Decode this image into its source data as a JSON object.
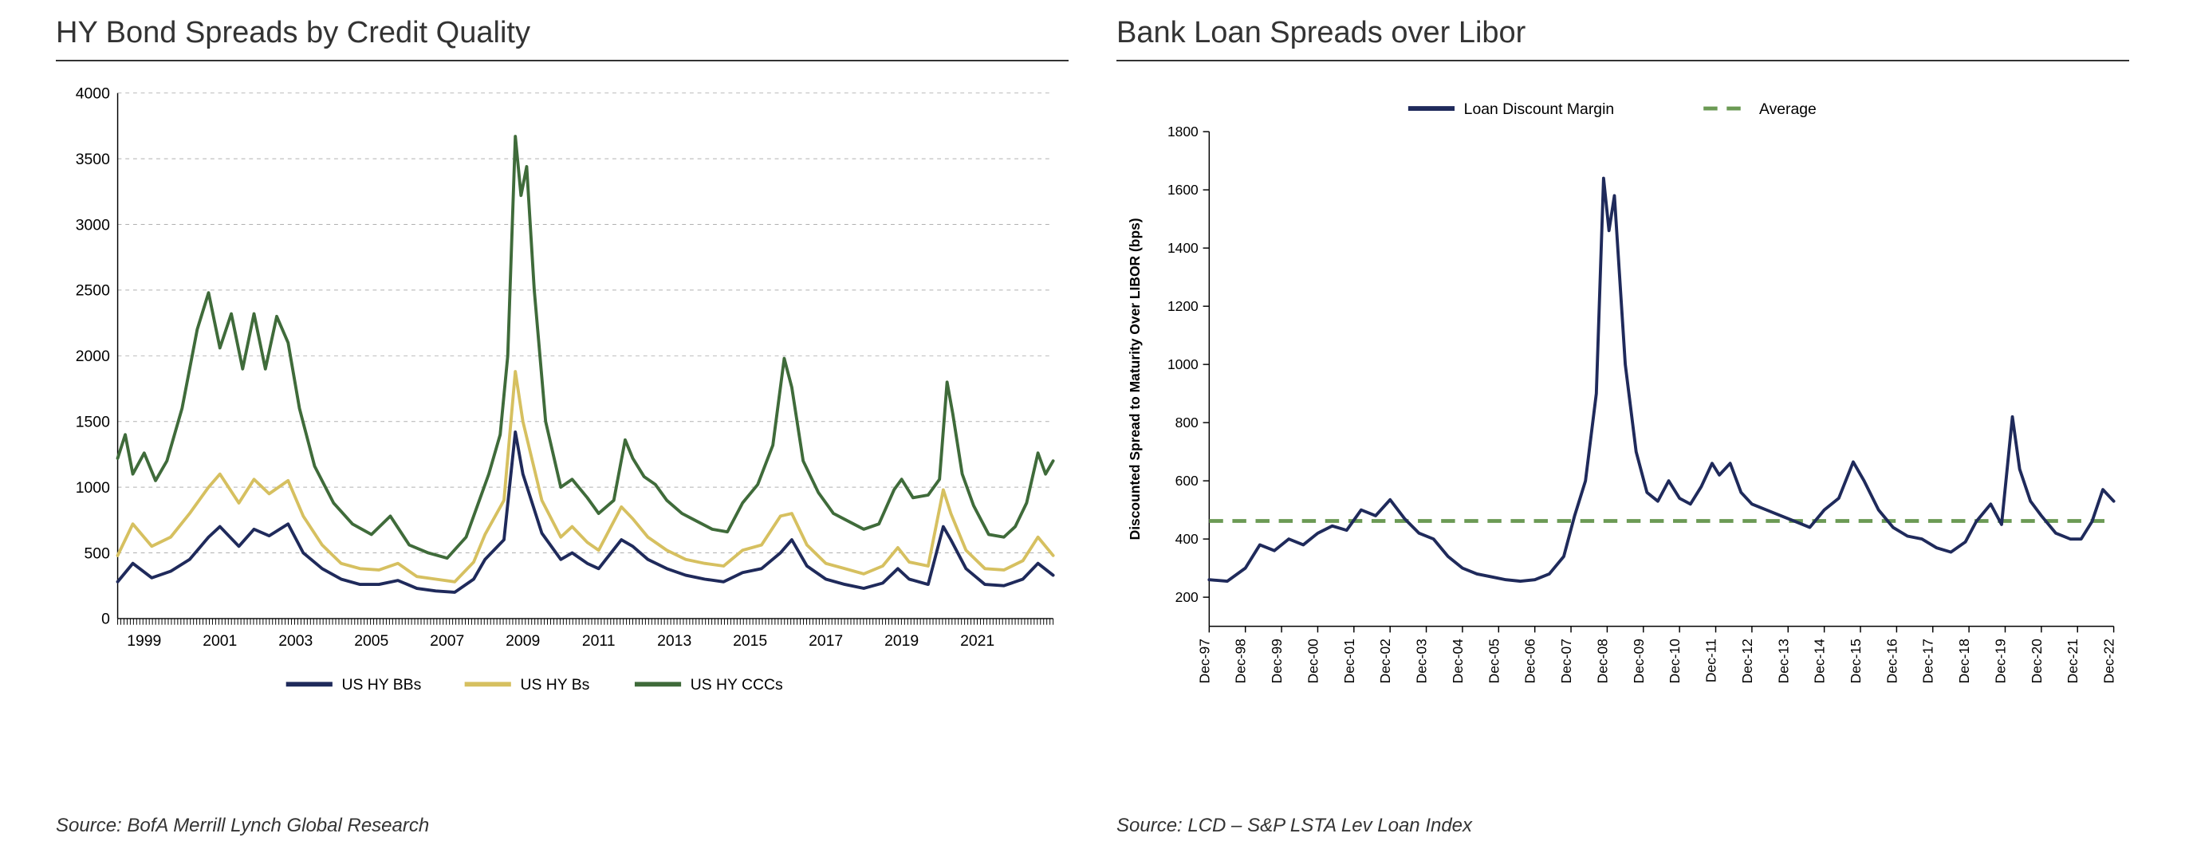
{
  "left_chart": {
    "type": "line",
    "title": "HY Bond Spreads by Credit Quality",
    "title_fontsize": 38,
    "title_color": "#333333",
    "source": "Source: BofA Merrill Lynch Global Research",
    "background_color": "#ffffff",
    "grid_color": "#b0b0b0",
    "axis_color": "#000000",
    "tick_fontsize": 20,
    "x": {
      "min": 1998.3,
      "max": 2023.0,
      "ticks": [
        1999,
        2001,
        2003,
        2005,
        2007,
        2009,
        2011,
        2013,
        2015,
        2017,
        2019,
        2021
      ],
      "tick_labels": [
        "1999",
        "2001",
        "2003",
        "2005",
        "2007",
        "2009",
        "2011",
        "2013",
        "2015",
        "2017",
        "2019",
        "2021"
      ]
    },
    "y": {
      "min": 0,
      "max": 4000,
      "ticks": [
        0,
        500,
        1000,
        1500,
        2000,
        2500,
        3000,
        3500,
        4000
      ]
    },
    "line_width": 4,
    "legend_fontsize": 20,
    "series": [
      {
        "name": "US HY BBs",
        "color": "#1f2a5b",
        "points": [
          [
            1998.3,
            280
          ],
          [
            1998.7,
            420
          ],
          [
            1999.2,
            310
          ],
          [
            1999.7,
            360
          ],
          [
            2000.2,
            450
          ],
          [
            2000.7,
            620
          ],
          [
            2001.0,
            700
          ],
          [
            2001.5,
            550
          ],
          [
            2001.9,
            680
          ],
          [
            2002.3,
            630
          ],
          [
            2002.8,
            720
          ],
          [
            2003.2,
            500
          ],
          [
            2003.7,
            380
          ],
          [
            2004.2,
            300
          ],
          [
            2004.7,
            260
          ],
          [
            2005.2,
            260
          ],
          [
            2005.7,
            290
          ],
          [
            2006.2,
            230
          ],
          [
            2006.7,
            210
          ],
          [
            2007.2,
            200
          ],
          [
            2007.7,
            300
          ],
          [
            2008.0,
            450
          ],
          [
            2008.5,
            600
          ],
          [
            2008.8,
            1420
          ],
          [
            2009.0,
            1100
          ],
          [
            2009.5,
            650
          ],
          [
            2010.0,
            450
          ],
          [
            2010.3,
            500
          ],
          [
            2010.7,
            420
          ],
          [
            2011.0,
            380
          ],
          [
            2011.6,
            600
          ],
          [
            2011.9,
            550
          ],
          [
            2012.3,
            450
          ],
          [
            2012.8,
            380
          ],
          [
            2013.3,
            330
          ],
          [
            2013.8,
            300
          ],
          [
            2014.3,
            280
          ],
          [
            2014.8,
            350
          ],
          [
            2015.3,
            380
          ],
          [
            2015.8,
            500
          ],
          [
            2016.1,
            600
          ],
          [
            2016.5,
            400
          ],
          [
            2017.0,
            300
          ],
          [
            2017.5,
            260
          ],
          [
            2018.0,
            230
          ],
          [
            2018.5,
            270
          ],
          [
            2018.9,
            380
          ],
          [
            2019.2,
            300
          ],
          [
            2019.7,
            260
          ],
          [
            2020.1,
            700
          ],
          [
            2020.3,
            600
          ],
          [
            2020.7,
            380
          ],
          [
            2021.2,
            260
          ],
          [
            2021.7,
            250
          ],
          [
            2022.2,
            300
          ],
          [
            2022.6,
            420
          ],
          [
            2023.0,
            330
          ]
        ]
      },
      {
        "name": "US HY Bs",
        "color": "#d6c060",
        "points": [
          [
            1998.3,
            480
          ],
          [
            1998.7,
            720
          ],
          [
            1999.2,
            550
          ],
          [
            1999.7,
            620
          ],
          [
            2000.2,
            800
          ],
          [
            2000.7,
            1000
          ],
          [
            2001.0,
            1100
          ],
          [
            2001.5,
            880
          ],
          [
            2001.9,
            1060
          ],
          [
            2002.3,
            950
          ],
          [
            2002.8,
            1050
          ],
          [
            2003.2,
            780
          ],
          [
            2003.7,
            560
          ],
          [
            2004.2,
            420
          ],
          [
            2004.7,
            380
          ],
          [
            2005.2,
            370
          ],
          [
            2005.7,
            420
          ],
          [
            2006.2,
            320
          ],
          [
            2006.7,
            300
          ],
          [
            2007.2,
            280
          ],
          [
            2007.7,
            430
          ],
          [
            2008.0,
            640
          ],
          [
            2008.5,
            900
          ],
          [
            2008.8,
            1880
          ],
          [
            2009.0,
            1500
          ],
          [
            2009.5,
            900
          ],
          [
            2010.0,
            620
          ],
          [
            2010.3,
            700
          ],
          [
            2010.7,
            580
          ],
          [
            2011.0,
            520
          ],
          [
            2011.6,
            850
          ],
          [
            2011.9,
            760
          ],
          [
            2012.3,
            620
          ],
          [
            2012.8,
            520
          ],
          [
            2013.3,
            450
          ],
          [
            2013.8,
            420
          ],
          [
            2014.3,
            400
          ],
          [
            2014.8,
            520
          ],
          [
            2015.3,
            560
          ],
          [
            2015.8,
            780
          ],
          [
            2016.1,
            800
          ],
          [
            2016.5,
            560
          ],
          [
            2017.0,
            420
          ],
          [
            2017.5,
            380
          ],
          [
            2018.0,
            340
          ],
          [
            2018.5,
            400
          ],
          [
            2018.9,
            540
          ],
          [
            2019.2,
            430
          ],
          [
            2019.7,
            400
          ],
          [
            2020.1,
            980
          ],
          [
            2020.3,
            800
          ],
          [
            2020.7,
            520
          ],
          [
            2021.2,
            380
          ],
          [
            2021.7,
            370
          ],
          [
            2022.2,
            440
          ],
          [
            2022.6,
            620
          ],
          [
            2023.0,
            480
          ]
        ]
      },
      {
        "name": "US HY CCCs",
        "color": "#3f6b3a",
        "points": [
          [
            1998.3,
            1220
          ],
          [
            1998.5,
            1400
          ],
          [
            1998.7,
            1100
          ],
          [
            1999.0,
            1260
          ],
          [
            1999.3,
            1050
          ],
          [
            1999.6,
            1200
          ],
          [
            2000.0,
            1600
          ],
          [
            2000.4,
            2200
          ],
          [
            2000.7,
            2480
          ],
          [
            2001.0,
            2060
          ],
          [
            2001.3,
            2320
          ],
          [
            2001.6,
            1900
          ],
          [
            2001.9,
            2320
          ],
          [
            2002.2,
            1900
          ],
          [
            2002.5,
            2300
          ],
          [
            2002.8,
            2100
          ],
          [
            2003.1,
            1600
          ],
          [
            2003.5,
            1160
          ],
          [
            2004.0,
            880
          ],
          [
            2004.5,
            720
          ],
          [
            2005.0,
            640
          ],
          [
            2005.5,
            780
          ],
          [
            2006.0,
            560
          ],
          [
            2006.5,
            500
          ],
          [
            2007.0,
            460
          ],
          [
            2007.5,
            620
          ],
          [
            2007.8,
            860
          ],
          [
            2008.1,
            1100
          ],
          [
            2008.4,
            1400
          ],
          [
            2008.6,
            2000
          ],
          [
            2008.8,
            3670
          ],
          [
            2008.95,
            3220
          ],
          [
            2009.1,
            3440
          ],
          [
            2009.3,
            2500
          ],
          [
            2009.6,
            1500
          ],
          [
            2010.0,
            1000
          ],
          [
            2010.3,
            1060
          ],
          [
            2010.7,
            920
          ],
          [
            2011.0,
            800
          ],
          [
            2011.4,
            900
          ],
          [
            2011.7,
            1360
          ],
          [
            2011.9,
            1220
          ],
          [
            2012.2,
            1080
          ],
          [
            2012.5,
            1020
          ],
          [
            2012.8,
            900
          ],
          [
            2013.2,
            800
          ],
          [
            2013.6,
            740
          ],
          [
            2014.0,
            680
          ],
          [
            2014.4,
            660
          ],
          [
            2014.8,
            880
          ],
          [
            2015.2,
            1020
          ],
          [
            2015.6,
            1320
          ],
          [
            2015.9,
            1980
          ],
          [
            2016.1,
            1760
          ],
          [
            2016.4,
            1200
          ],
          [
            2016.8,
            960
          ],
          [
            2017.2,
            800
          ],
          [
            2017.6,
            740
          ],
          [
            2018.0,
            680
          ],
          [
            2018.4,
            720
          ],
          [
            2018.8,
            980
          ],
          [
            2019.0,
            1060
          ],
          [
            2019.3,
            920
          ],
          [
            2019.7,
            940
          ],
          [
            2020.0,
            1060
          ],
          [
            2020.2,
            1800
          ],
          [
            2020.35,
            1560
          ],
          [
            2020.6,
            1100
          ],
          [
            2020.9,
            860
          ],
          [
            2021.3,
            640
          ],
          [
            2021.7,
            620
          ],
          [
            2022.0,
            700
          ],
          [
            2022.3,
            880
          ],
          [
            2022.6,
            1260
          ],
          [
            2022.8,
            1100
          ],
          [
            2023.0,
            1200
          ]
        ]
      }
    ]
  },
  "right_chart": {
    "type": "line",
    "title": "Bank Loan Spreads over Libor",
    "title_fontsize": 38,
    "title_color": "#333333",
    "source": "Source: LCD – S&P LSTA Lev Loan Index",
    "background_color": "#ffffff",
    "axis_color": "#000000",
    "tick_fontsize": 18,
    "ylabel": "Discounted Spread to Maturity Over LIBOR (bps)",
    "ylabel_fontsize": 18,
    "x": {
      "min": 0,
      "max": 25,
      "ticks": [
        0,
        1,
        2,
        3,
        4,
        5,
        6,
        7,
        8,
        9,
        10,
        11,
        12,
        13,
        14,
        15,
        16,
        17,
        18,
        19,
        20,
        21,
        22,
        23,
        24,
        25
      ],
      "tick_labels": [
        "Dec-97",
        "Dec-98",
        "Dec-99",
        "Dec-00",
        "Dec-01",
        "Dec-02",
        "Dec-03",
        "Dec-04",
        "Dec-05",
        "Dec-06",
        "Dec-07",
        "Dec-08",
        "Dec-09",
        "Dec-10",
        "Dec-11",
        "Dec-12",
        "Dec-13",
        "Dec-14",
        "Dec-15",
        "Dec-16",
        "Dec-17",
        "Dec-18",
        "Dec-19",
        "Dec-20",
        "Dec-21",
        "Dec-22"
      ]
    },
    "y": {
      "min": 100,
      "max": 1800,
      "ticks": [
        200,
        400,
        600,
        800,
        1000,
        1200,
        1400,
        1600,
        1800
      ]
    },
    "line_width": 4,
    "legend_fontsize": 20,
    "average_line": {
      "value": 462,
      "label": "Average",
      "color": "#6b9a54",
      "dash": "18 12",
      "width": 5
    },
    "series": [
      {
        "name": "Loan Discount Margin",
        "color": "#1f2a5b",
        "points": [
          [
            0,
            260
          ],
          [
            0.5,
            255
          ],
          [
            1,
            300
          ],
          [
            1.4,
            380
          ],
          [
            1.8,
            360
          ],
          [
            2.2,
            400
          ],
          [
            2.6,
            380
          ],
          [
            3.0,
            420
          ],
          [
            3.4,
            445
          ],
          [
            3.8,
            430
          ],
          [
            4.2,
            500
          ],
          [
            4.6,
            480
          ],
          [
            5.0,
            535
          ],
          [
            5.4,
            470
          ],
          [
            5.8,
            420
          ],
          [
            6.2,
            400
          ],
          [
            6.6,
            340
          ],
          [
            7.0,
            300
          ],
          [
            7.4,
            280
          ],
          [
            7.8,
            270
          ],
          [
            8.2,
            260
          ],
          [
            8.6,
            255
          ],
          [
            9.0,
            260
          ],
          [
            9.4,
            280
          ],
          [
            9.8,
            340
          ],
          [
            10.1,
            480
          ],
          [
            10.4,
            600
          ],
          [
            10.7,
            900
          ],
          [
            10.9,
            1640
          ],
          [
            11.05,
            1460
          ],
          [
            11.2,
            1580
          ],
          [
            11.5,
            1000
          ],
          [
            11.8,
            700
          ],
          [
            12.1,
            560
          ],
          [
            12.4,
            530
          ],
          [
            12.7,
            600
          ],
          [
            13.0,
            540
          ],
          [
            13.3,
            520
          ],
          [
            13.6,
            580
          ],
          [
            13.9,
            660
          ],
          [
            14.1,
            620
          ],
          [
            14.4,
            660
          ],
          [
            14.7,
            560
          ],
          [
            15.0,
            520
          ],
          [
            15.4,
            500
          ],
          [
            15.8,
            480
          ],
          [
            16.2,
            460
          ],
          [
            16.6,
            440
          ],
          [
            17.0,
            500
          ],
          [
            17.4,
            540
          ],
          [
            17.8,
            665
          ],
          [
            18.1,
            600
          ],
          [
            18.5,
            500
          ],
          [
            18.9,
            440
          ],
          [
            19.3,
            410
          ],
          [
            19.7,
            400
          ],
          [
            20.1,
            370
          ],
          [
            20.5,
            355
          ],
          [
            20.9,
            390
          ],
          [
            21.2,
            460
          ],
          [
            21.6,
            520
          ],
          [
            21.9,
            450
          ],
          [
            22.2,
            820
          ],
          [
            22.4,
            640
          ],
          [
            22.7,
            530
          ],
          [
            23.0,
            480
          ],
          [
            23.4,
            420
          ],
          [
            23.8,
            400
          ],
          [
            24.1,
            400
          ],
          [
            24.4,
            460
          ],
          [
            24.7,
            570
          ],
          [
            25.0,
            530
          ]
        ]
      }
    ]
  }
}
